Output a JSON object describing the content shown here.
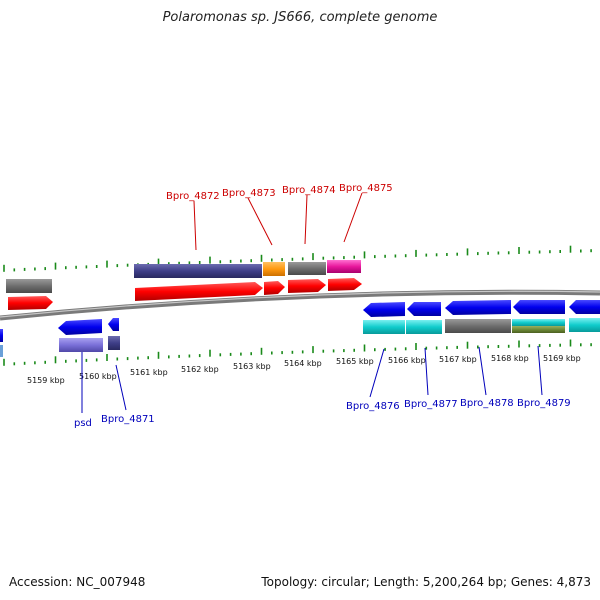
{
  "title": "Polaromonas sp. JS666, complete genome",
  "footer": {
    "accession": "Accession: NC_007948",
    "stats": "Topology: circular; Length: 5,200,264 bp; Genes: 4,873"
  },
  "kbp_labels": [
    "5159 kbp",
    "5160 kbp",
    "5161 kbp",
    "5162 kbp",
    "5163 kbp",
    "5164 kbp",
    "5165 kbp",
    "5166 kbp",
    "5167 kbp",
    "5168 kbp",
    "5169 kbp"
  ],
  "gene_labels": {
    "top": [
      "Bpro_4872",
      "Bpro_4873",
      "Bpro_4874",
      "Bpro_4875"
    ],
    "bottom": [
      "psd",
      "Bpro_4871",
      "Bpro_4876",
      "Bpro_4877",
      "Bpro_4878",
      "Bpro_4879"
    ]
  },
  "colors": {
    "forward_cds": "#ff0000",
    "reverse_cds": "#0000ee",
    "backbone": "#888888",
    "ticks": "#1a8a1a",
    "label_top": "#cc0000",
    "label_bottom": "#0000bb"
  }
}
